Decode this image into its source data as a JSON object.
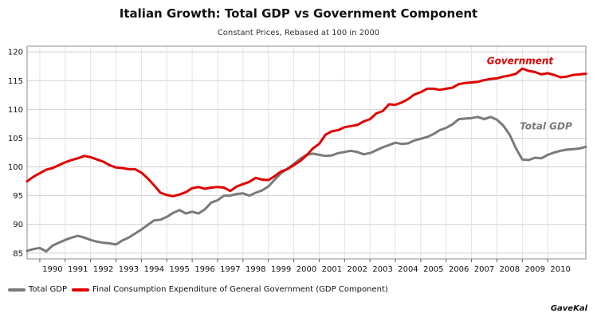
{
  "chart_data": {
    "type": "line",
    "title": "Italian Growth: Total GDP vs Government Component",
    "subtitle": "Constant Prices, Rebased at 100 in 2000",
    "xlabel": "",
    "ylabel": "",
    "xlim": [
      1989.5,
      2011.5
    ],
    "ylim": [
      84,
      121
    ],
    "yticks": [
      85,
      90,
      95,
      100,
      105,
      110,
      115,
      120
    ],
    "xticks": [
      "1990",
      "1991",
      "1992",
      "1993",
      "1994",
      "1995",
      "1996",
      "1997",
      "1998",
      "1999",
      "2000",
      "2001",
      "2002",
      "2003",
      "2004",
      "2005",
      "2006",
      "2007",
      "2008",
      "2009",
      "2010"
    ],
    "grid": true,
    "legend_position": "bottom-left",
    "series": [
      {
        "name": "Total GDP",
        "inline_label": "Total GDP",
        "color": "#7a7a7a",
        "points": [
          [
            1989.5,
            85.4
          ],
          [
            1989.75,
            85.7
          ],
          [
            1990.0,
            85.9
          ],
          [
            1990.25,
            85.3
          ],
          [
            1990.5,
            86.3
          ],
          [
            1990.75,
            86.8
          ],
          [
            1991.0,
            87.3
          ],
          [
            1991.25,
            87.7
          ],
          [
            1991.5,
            88.0
          ],
          [
            1991.75,
            87.7
          ],
          [
            1992.0,
            87.3
          ],
          [
            1992.25,
            87.0
          ],
          [
            1992.5,
            86.8
          ],
          [
            1992.75,
            86.7
          ],
          [
            1993.0,
            86.5
          ],
          [
            1993.25,
            87.2
          ],
          [
            1993.5,
            87.7
          ],
          [
            1993.75,
            88.4
          ],
          [
            1994.0,
            89.1
          ],
          [
            1994.25,
            89.9
          ],
          [
            1994.5,
            90.7
          ],
          [
            1994.75,
            90.8
          ],
          [
            1995.0,
            91.3
          ],
          [
            1995.25,
            92.0
          ],
          [
            1995.5,
            92.5
          ],
          [
            1995.75,
            91.9
          ],
          [
            1996.0,
            92.2
          ],
          [
            1996.25,
            91.9
          ],
          [
            1996.5,
            92.6
          ],
          [
            1996.75,
            93.8
          ],
          [
            1997.0,
            94.2
          ],
          [
            1997.25,
            95.0
          ],
          [
            1997.5,
            95.0
          ],
          [
            1997.75,
            95.3
          ],
          [
            1998.0,
            95.4
          ],
          [
            1998.25,
            95.0
          ],
          [
            1998.5,
            95.5
          ],
          [
            1998.75,
            95.9
          ],
          [
            1999.0,
            96.6
          ],
          [
            1999.25,
            97.8
          ],
          [
            1999.5,
            98.9
          ],
          [
            1999.75,
            99.7
          ],
          [
            2000.0,
            100.5
          ],
          [
            2000.25,
            101.4
          ],
          [
            2000.5,
            102.1
          ],
          [
            2000.75,
            102.3
          ],
          [
            2001.0,
            102.1
          ],
          [
            2001.25,
            101.9
          ],
          [
            2001.5,
            102.0
          ],
          [
            2001.75,
            102.4
          ],
          [
            2002.0,
            102.6
          ],
          [
            2002.25,
            102.8
          ],
          [
            2002.5,
            102.6
          ],
          [
            2002.75,
            102.2
          ],
          [
            2003.0,
            102.4
          ],
          [
            2003.25,
            102.9
          ],
          [
            2003.5,
            103.4
          ],
          [
            2003.75,
            103.8
          ],
          [
            2004.0,
            104.2
          ],
          [
            2004.25,
            104.0
          ],
          [
            2004.5,
            104.1
          ],
          [
            2004.75,
            104.6
          ],
          [
            2005.0,
            104.9
          ],
          [
            2005.25,
            105.2
          ],
          [
            2005.5,
            105.7
          ],
          [
            2005.75,
            106.4
          ],
          [
            2006.0,
            106.8
          ],
          [
            2006.25,
            107.4
          ],
          [
            2006.5,
            108.3
          ],
          [
            2006.75,
            108.4
          ],
          [
            2007.0,
            108.5
          ],
          [
            2007.25,
            108.7
          ],
          [
            2007.5,
            108.3
          ],
          [
            2007.75,
            108.7
          ],
          [
            2008.0,
            108.2
          ],
          [
            2008.25,
            107.2
          ],
          [
            2008.5,
            105.6
          ],
          [
            2008.75,
            103.2
          ],
          [
            2009.0,
            101.3
          ],
          [
            2009.25,
            101.2
          ],
          [
            2009.5,
            101.6
          ],
          [
            2009.75,
            101.5
          ],
          [
            2010.0,
            102.1
          ],
          [
            2010.25,
            102.5
          ],
          [
            2010.5,
            102.8
          ],
          [
            2010.75,
            103.0
          ],
          [
            2011.0,
            103.1
          ],
          [
            2011.25,
            103.2
          ],
          [
            2011.5,
            103.5
          ]
        ]
      },
      {
        "name": "Final Consumption Expenditure of General Government (GDP Component)",
        "inline_label": "Government",
        "color": "#e00000",
        "points": [
          [
            1989.5,
            97.5
          ],
          [
            1989.75,
            98.3
          ],
          [
            1990.0,
            98.9
          ],
          [
            1990.25,
            99.5
          ],
          [
            1990.5,
            99.8
          ],
          [
            1990.75,
            100.3
          ],
          [
            1991.0,
            100.8
          ],
          [
            1991.25,
            101.2
          ],
          [
            1991.5,
            101.5
          ],
          [
            1991.75,
            101.9
          ],
          [
            1992.0,
            101.7
          ],
          [
            1992.25,
            101.3
          ],
          [
            1992.5,
            100.9
          ],
          [
            1992.75,
            100.3
          ],
          [
            1993.0,
            99.9
          ],
          [
            1993.25,
            99.8
          ],
          [
            1993.5,
            99.6
          ],
          [
            1993.75,
            99.6
          ],
          [
            1994.0,
            99.0
          ],
          [
            1994.25,
            98.0
          ],
          [
            1994.5,
            96.8
          ],
          [
            1994.75,
            95.5
          ],
          [
            1995.0,
            95.1
          ],
          [
            1995.25,
            94.9
          ],
          [
            1995.5,
            95.2
          ],
          [
            1995.75,
            95.6
          ],
          [
            1996.0,
            96.3
          ],
          [
            1996.25,
            96.5
          ],
          [
            1996.5,
            96.2
          ],
          [
            1996.75,
            96.4
          ],
          [
            1997.0,
            96.5
          ],
          [
            1997.25,
            96.4
          ],
          [
            1997.5,
            95.8
          ],
          [
            1997.75,
            96.6
          ],
          [
            1998.0,
            97.0
          ],
          [
            1998.25,
            97.4
          ],
          [
            1998.5,
            98.1
          ],
          [
            1998.75,
            97.8
          ],
          [
            1999.0,
            97.7
          ],
          [
            1999.25,
            98.4
          ],
          [
            1999.5,
            99.2
          ],
          [
            1999.75,
            99.6
          ],
          [
            2000.0,
            100.3
          ],
          [
            2000.25,
            101.0
          ],
          [
            2000.5,
            102.0
          ],
          [
            2000.75,
            103.2
          ],
          [
            2001.0,
            104.0
          ],
          [
            2001.25,
            105.6
          ],
          [
            2001.5,
            106.2
          ],
          [
            2001.75,
            106.4
          ],
          [
            2002.0,
            106.9
          ],
          [
            2002.25,
            107.1
          ],
          [
            2002.5,
            107.3
          ],
          [
            2002.75,
            107.9
          ],
          [
            2003.0,
            108.3
          ],
          [
            2003.25,
            109.3
          ],
          [
            2003.5,
            109.7
          ],
          [
            2003.75,
            110.9
          ],
          [
            2004.0,
            110.8
          ],
          [
            2004.25,
            111.2
          ],
          [
            2004.5,
            111.8
          ],
          [
            2004.75,
            112.6
          ],
          [
            2005.0,
            113.0
          ],
          [
            2005.25,
            113.6
          ],
          [
            2005.5,
            113.6
          ],
          [
            2005.75,
            113.4
          ],
          [
            2006.0,
            113.6
          ],
          [
            2006.25,
            113.8
          ],
          [
            2006.5,
            114.4
          ],
          [
            2006.75,
            114.6
          ],
          [
            2007.0,
            114.7
          ],
          [
            2007.25,
            114.8
          ],
          [
            2007.5,
            115.1
          ],
          [
            2007.75,
            115.3
          ],
          [
            2008.0,
            115.4
          ],
          [
            2008.25,
            115.7
          ],
          [
            2008.5,
            115.9
          ],
          [
            2008.75,
            116.2
          ],
          [
            2009.0,
            117.1
          ],
          [
            2009.25,
            116.7
          ],
          [
            2009.5,
            116.5
          ],
          [
            2009.75,
            116.1
          ],
          [
            2010.0,
            116.3
          ],
          [
            2010.25,
            116.0
          ],
          [
            2010.5,
            115.6
          ],
          [
            2010.75,
            115.7
          ],
          [
            2011.0,
            116.0
          ],
          [
            2011.25,
            116.1
          ],
          [
            2011.5,
            116.2
          ]
        ]
      }
    ]
  },
  "legend": {
    "items": [
      {
        "label": "Total GDP",
        "color": "#7a7a7a"
      },
      {
        "label": "Final Consumption Expenditure of General Government (GDP Component)",
        "color": "#e00000"
      }
    ]
  },
  "brand": "GaveKal"
}
